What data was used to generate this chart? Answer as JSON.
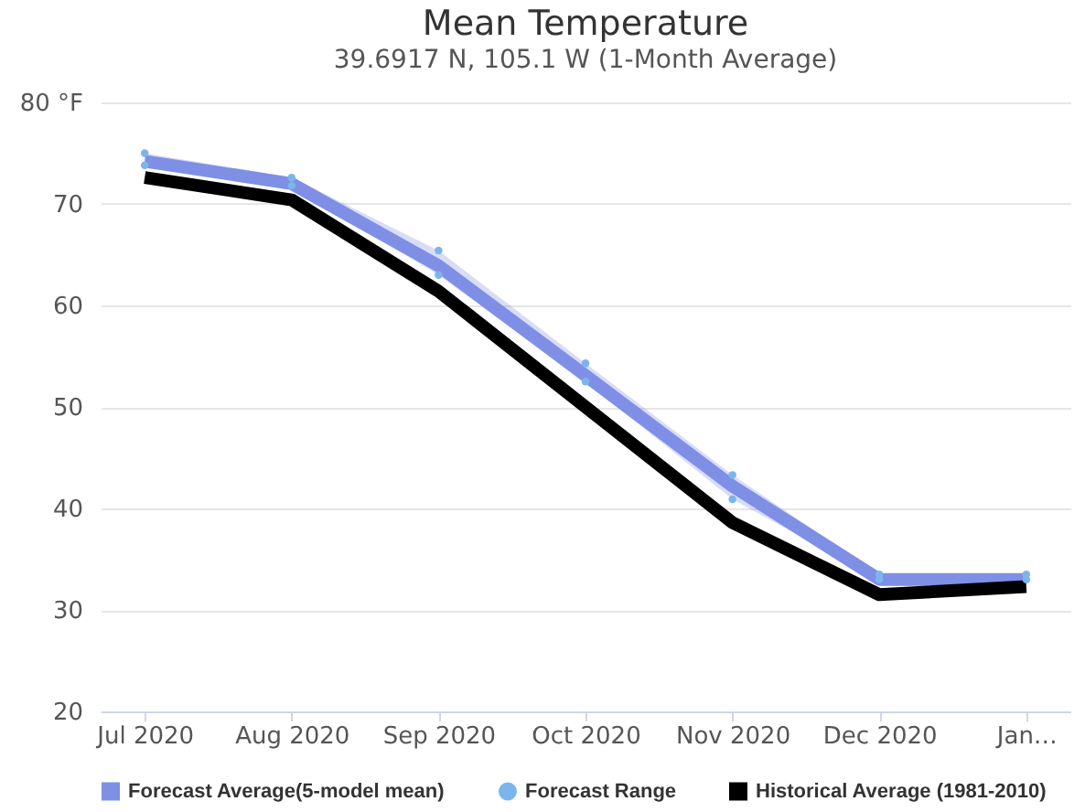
{
  "chart_data": {
    "type": "line",
    "title": "Mean Temperature",
    "subtitle": "39.6917 N, 105.1 W (1-Month Average)",
    "categories": [
      "Jul 2020",
      "Aug 2020",
      "Sep 2020",
      "Oct 2020",
      "Nov 2020",
      "Dec 2020",
      "Jan…"
    ],
    "ylim": [
      20,
      80
    ],
    "yticks": [
      20,
      30,
      40,
      50,
      60,
      70,
      {
        "value": 80,
        "label": "80 °F"
      }
    ],
    "grid": "y",
    "legend": "bottom",
    "line_style": "solid",
    "series": [
      {
        "name": "Forecast Average(5-model mean)",
        "color": "#7f8fe6",
        "values": [
          74.2,
          72.0,
          63.9,
          53.1,
          42.2,
          33.0,
          33.0
        ],
        "lower": [
          73.8,
          71.8,
          63.0,
          52.5,
          40.9,
          33.0,
          33.0
        ],
        "upper": [
          75.0,
          72.6,
          65.4,
          54.3,
          43.3,
          33.5,
          33.5
        ]
      },
      {
        "name": "Forecast Range",
        "type": "scatter",
        "color": "#7cb5ec",
        "x": [
          "Jul 2020",
          "Aug 2020",
          "Sep 2020",
          "Oct 2020",
          "Nov 2020",
          "Dec 2020",
          "Jan…",
          "Jul 2020",
          "Aug 2020",
          "Sep 2020",
          "Oct 2020",
          "Nov 2020",
          "Dec 2020",
          "Jan…"
        ],
        "values": [
          73.8,
          71.8,
          63.0,
          52.5,
          40.9,
          33.0,
          33.0,
          75.0,
          72.6,
          65.4,
          54.3,
          43.3,
          33.5,
          33.5
        ]
      },
      {
        "name": "Historical Average (1981-2010)",
        "color": "#000000",
        "values": [
          72.6,
          70.4,
          61.4,
          50.0,
          38.6,
          31.5,
          32.3
        ]
      }
    ]
  }
}
